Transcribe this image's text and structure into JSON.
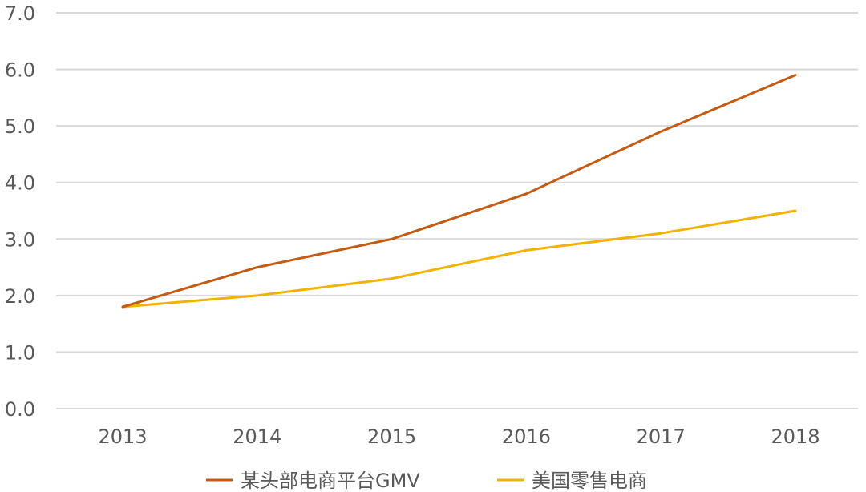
{
  "chart_data": {
    "type": "line",
    "categories": [
      "2013",
      "2014",
      "2015",
      "2016",
      "2017",
      "2018"
    ],
    "ylim": [
      0,
      7
    ],
    "yticks": [
      "0.0",
      "1.0",
      "2.0",
      "3.0",
      "4.0",
      "5.0",
      "6.0",
      "7.0"
    ],
    "grid": true,
    "legend_position": "bottom",
    "series": [
      {
        "name": "某头部电商平台GMV",
        "color": "#c55a11",
        "values": [
          1.8,
          2.5,
          3.0,
          3.8,
          4.9,
          5.9
        ]
      },
      {
        "name": "美国零售电商",
        "color": "#f2b200",
        "values": [
          1.8,
          2.0,
          2.3,
          2.8,
          3.1,
          3.5
        ]
      }
    ]
  }
}
